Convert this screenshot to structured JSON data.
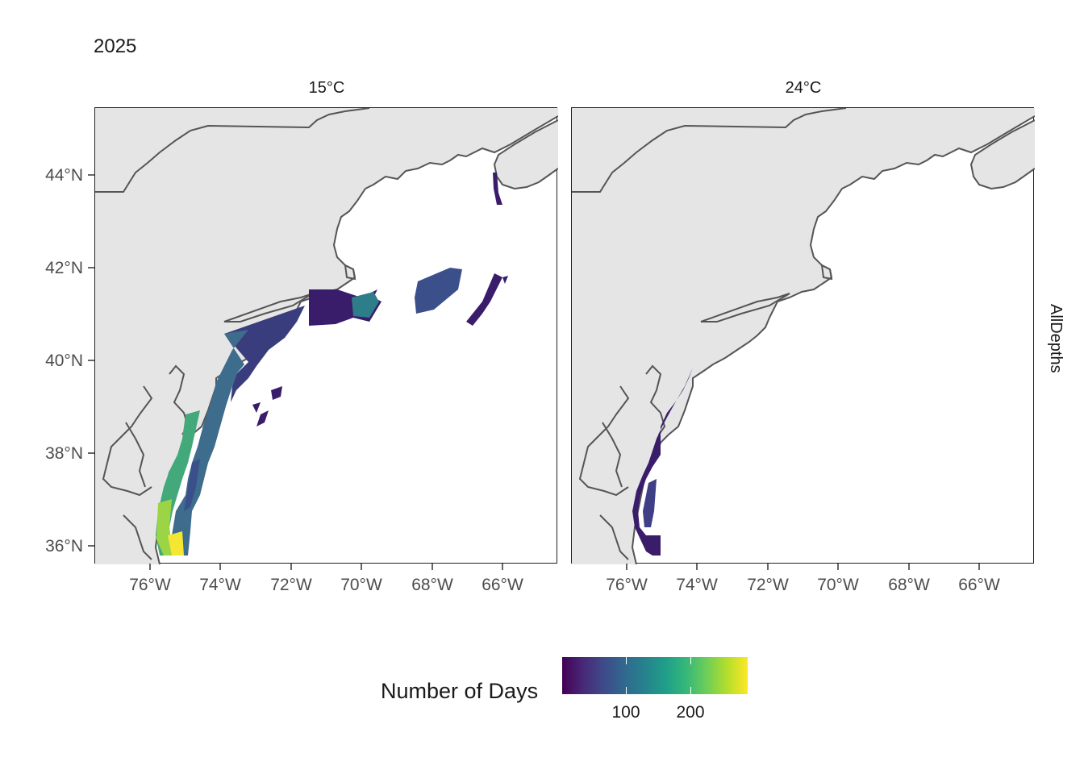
{
  "title": "2025",
  "panels": [
    {
      "label": "15°C"
    },
    {
      "label": "24°C"
    }
  ],
  "facet_row_label": "AllDepths",
  "axes": {
    "x_ticks": [
      "76°W",
      "74°W",
      "72°W",
      "70°W",
      "68°W",
      "66°W"
    ],
    "y_ticks": [
      "44°N",
      "42°N",
      "40°N",
      "38°N",
      "36°N"
    ]
  },
  "legend": {
    "title": "Number of Days",
    "tick_labels": [
      "100",
      "200"
    ]
  },
  "colors": {
    "land": "#e5e5e5",
    "coast": "#555555",
    "scale_low": "#440154",
    "scale_high": "#fde725"
  }
}
